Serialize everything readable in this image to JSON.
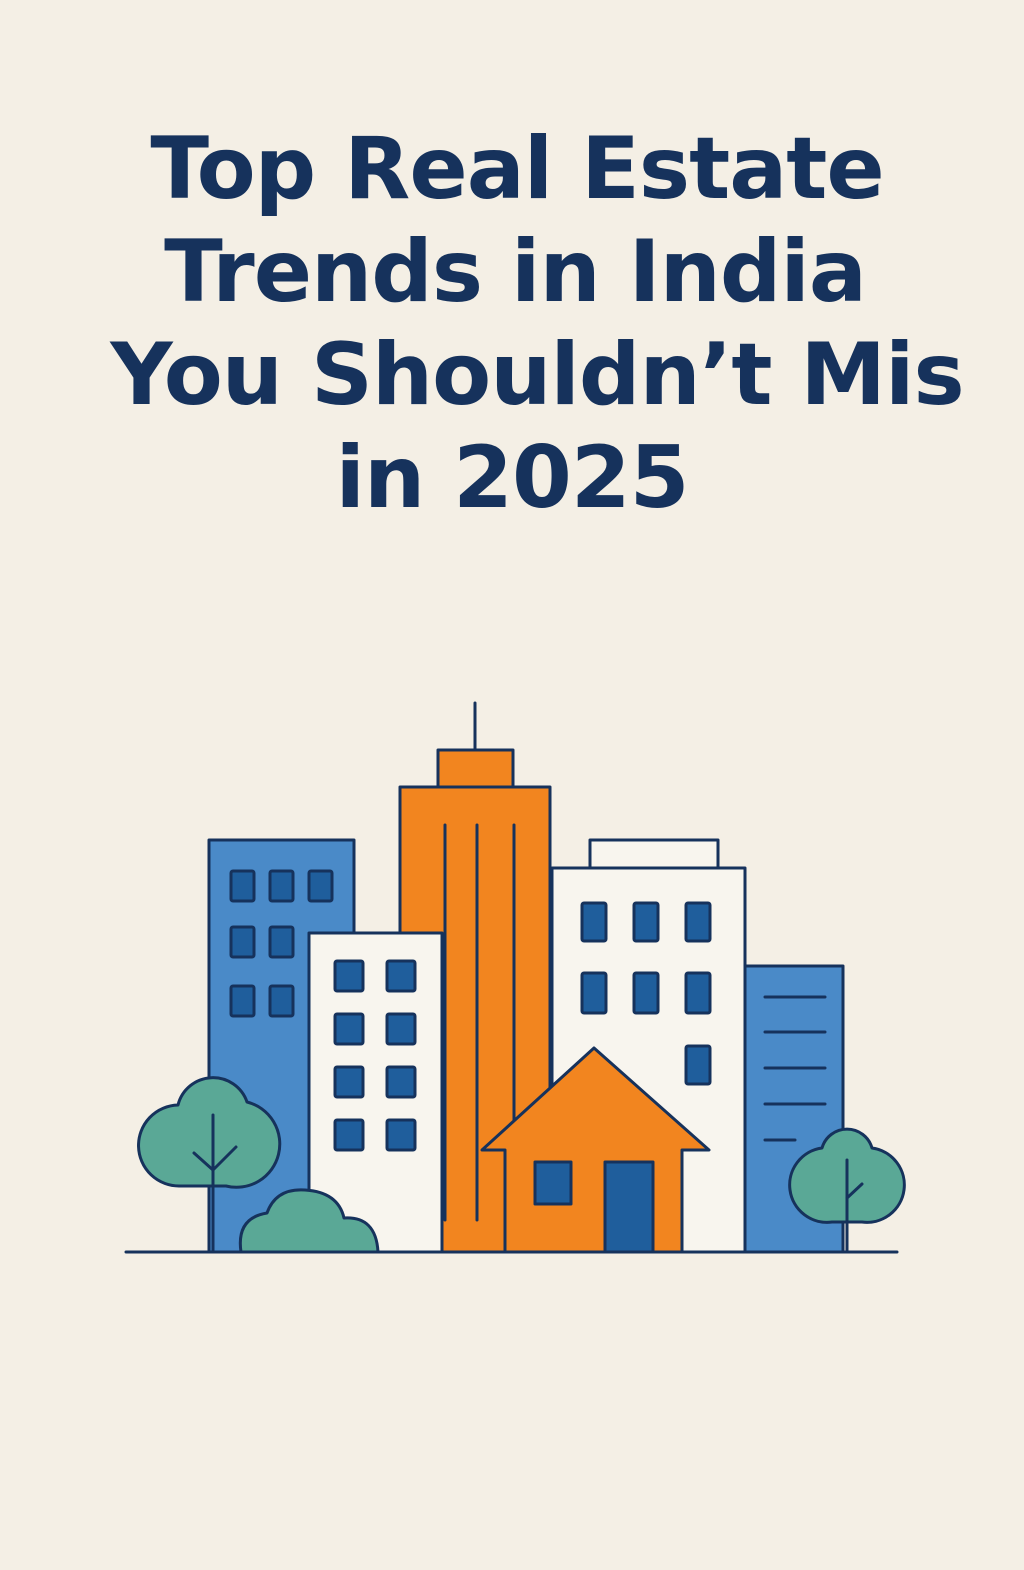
{
  "title": {
    "line1": "Top Real Estate",
    "line2": "Trends in India",
    "line3": "You Shouldn’t Mis",
    "line4": "in 2025"
  },
  "colors": {
    "background": "#f4efe5",
    "title": "#16325c",
    "outline": "#16325c",
    "blue": "#4a8ac8",
    "orange": "#f2851f",
    "white": "#f8f5ee",
    "window": "#1f5e9c",
    "tree": "#5aa896"
  }
}
